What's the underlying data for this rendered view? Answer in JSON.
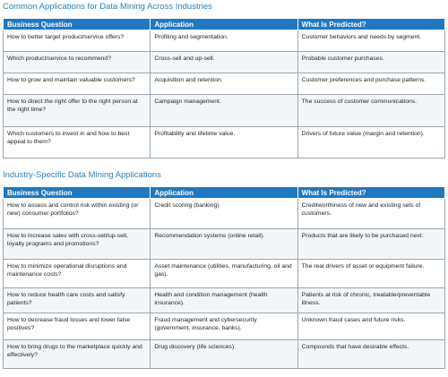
{
  "tables": [
    {
      "title": "Common Applications for Data Mining Across Industries",
      "headers": [
        "Business Question",
        "Application",
        "What Is Predicted?"
      ],
      "rows": [
        [
          "How to better target product/service offers?",
          "Profiling and segmentation.",
          "Customer behaviors and needs by segment."
        ],
        [
          "Which product/service to recommend?",
          "Cross-sell and up-sell.",
          "Probable customer purchases."
        ],
        [
          "How to grow and maintain valuable customers?",
          "Acquisition and retention.",
          "Customer preferences and purchase patterns."
        ],
        [
          "How to direct the right offer to the right person at the right time?",
          "Campaign management.",
          "The success of customer communications."
        ],
        [
          "Which customers to invest in and how to best appeal to them?",
          "Profitability and lifetime value.",
          "Drivers of future value (margin and retention)."
        ]
      ]
    },
    {
      "title": "Industry-Specific Data Mining Applications",
      "headers": [
        "Business Question",
        "Application",
        "What Is Predicted?"
      ],
      "rows": [
        [
          "How to assess and control risk within existing (or new) consumer portfolios?",
          "Credit scoring (banking).",
          "Creditworthiness of new and existing sets of customers."
        ],
        [
          "How to increase sales with cross-sell/up-sell, loyalty programs and promotions?",
          "Recommendation systems (online retail).",
          "Products that are likely to be purchased next."
        ],
        [
          "How to minimize operational disruptions and maintenance costs?",
          "Asset maintenance (utilities, manufacturing, oil and gas).",
          "The real drivers of asset or equipment failure."
        ],
        [
          "How to reduce health care costs and satisfy patients?",
          "Health and condition management (health insurance).",
          "Patients at risk of chronic, treatable/preventable illness."
        ],
        [
          "How to decrease fraud losses and lower false positives?",
          "Fraud management and cybersecurity (government, insurance, banks).",
          "Unknown fraud cases and future risks."
        ],
        [
          "How to bring drugs to the marketplace quickly and effectively?",
          "Drug discovery (life sciences).",
          "Compounds that have desirable effects."
        ]
      ]
    }
  ]
}
